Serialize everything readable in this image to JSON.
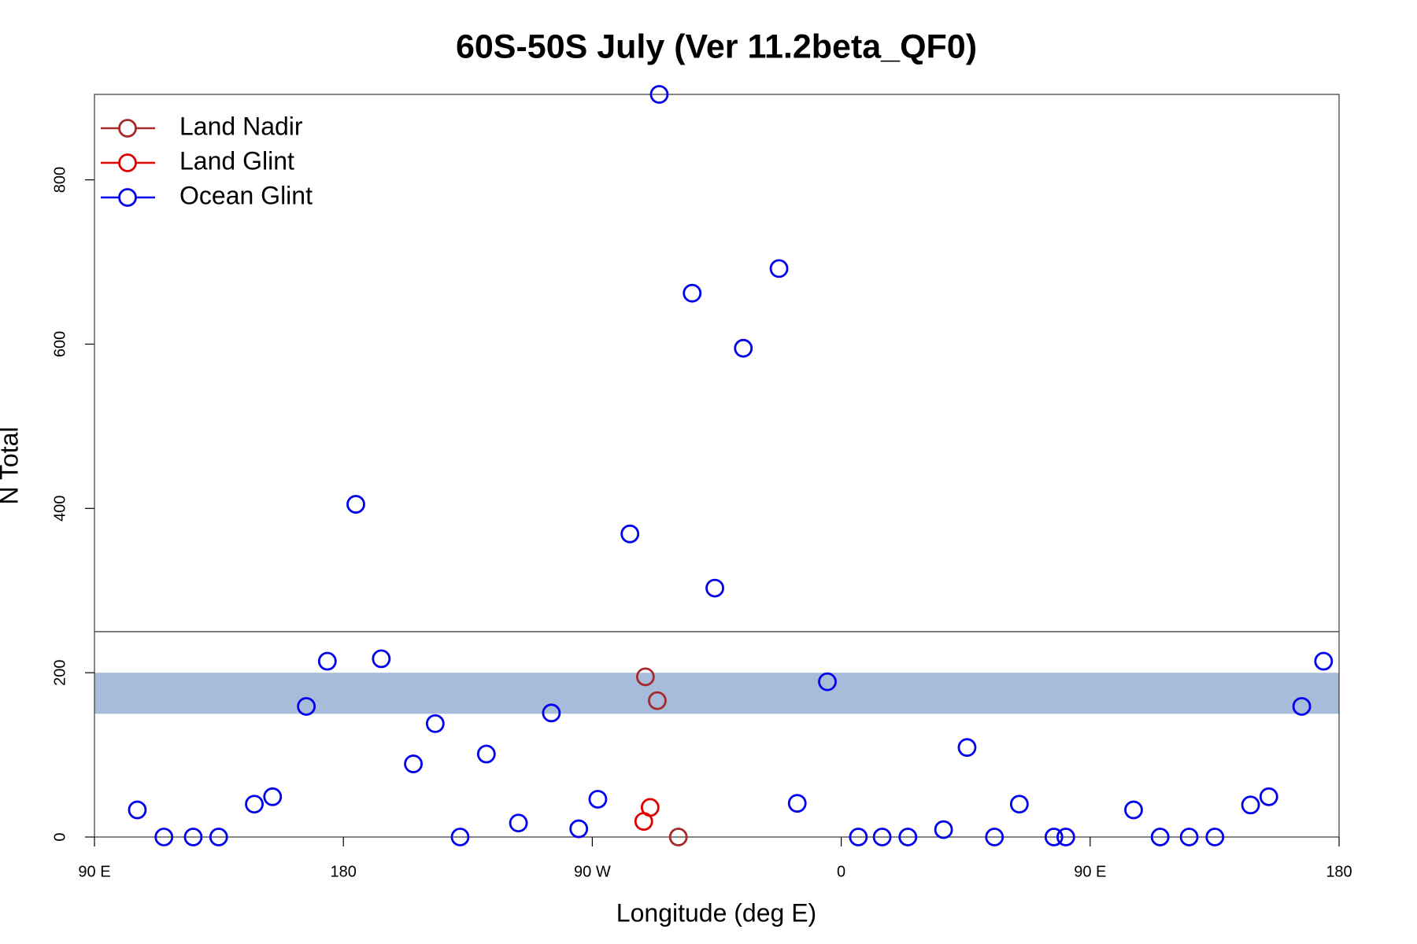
{
  "chart_data": {
    "type": "scatter",
    "title": "60S-50S July (Ver 11.2beta_QF0)",
    "x_label": "Longitude (deg E)",
    "y_label": "N Total",
    "xlim": [
      90,
      540
    ],
    "ylim": [
      0,
      904
    ],
    "xticks": [
      {
        "value": 90,
        "label": "90 E"
      },
      180,
      {
        "value": 270,
        "label": "90 W"
      },
      {
        "value": 360,
        "label": "0"
      },
      {
        "value": 450,
        "label": "90 E"
      },
      {
        "value": 540,
        "label": "180"
      }
    ],
    "yticks": [
      0,
      200,
      400,
      600,
      800
    ],
    "hline": 250,
    "band": [
      150,
      200
    ],
    "band_color": "#a7bcdb",
    "legend": "top-left",
    "series": [
      {
        "name": "Land Nadir",
        "color": "#a52a2a",
        "x": [
          289.2,
          293.5,
          301.1
        ],
        "values": [
          195,
          166,
          0
        ]
      },
      {
        "name": "Land Glint",
        "color": "#e00000",
        "x": [
          288.6,
          290.9
        ],
        "values": [
          19,
          36
        ]
      },
      {
        "name": "Ocean Glint",
        "color": "#0000ee",
        "x": [
          105.5,
          115.1,
          125.7,
          134.9,
          147.8,
          154.4,
          166.6,
          174.2,
          184.5,
          193.7,
          205.3,
          213.2,
          222.2,
          231.7,
          243.3,
          255.2,
          265.1,
          272.0,
          283.6,
          294.2,
          306.1,
          314.3,
          324.6,
          337.5,
          344.1,
          355.0,
          366.2,
          374.8,
          384.1,
          397.0,
          405.5,
          415.4,
          424.4,
          436.9,
          441.2,
          465.7,
          475.3,
          485.8,
          495.1,
          508.0,
          514.6,
          526.5,
          534.4
        ],
        "values": [
          33,
          0,
          0,
          0,
          40,
          49,
          159,
          214,
          405,
          217,
          89,
          138,
          0,
          101,
          17,
          151,
          10,
          46,
          369,
          904,
          662,
          303,
          595,
          692,
          41,
          189,
          0,
          0,
          0,
          9,
          109,
          0,
          40,
          0,
          0,
          33,
          0,
          0,
          0,
          39,
          49,
          159,
          214
        ]
      }
    ]
  }
}
